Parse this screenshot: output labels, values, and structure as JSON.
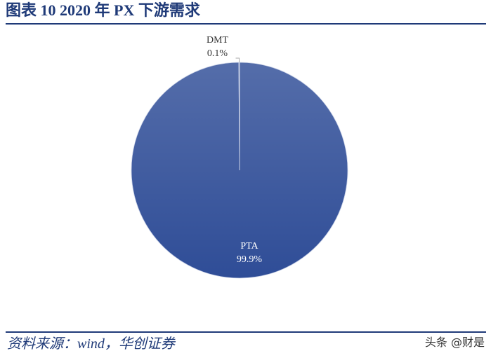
{
  "chart_data": {
    "type": "pie",
    "title": "图表 10 2020 年 PX 下游需求",
    "categories": [
      "PTA",
      "DMT"
    ],
    "values": [
      99.9,
      0.1
    ],
    "value_labels": [
      "99.9%",
      "0.1%"
    ],
    "colors": [
      "#2f4d97",
      "#4a64a6"
    ],
    "source": "资料来源：wind，华创证券",
    "watermark": "头条 @财是"
  }
}
